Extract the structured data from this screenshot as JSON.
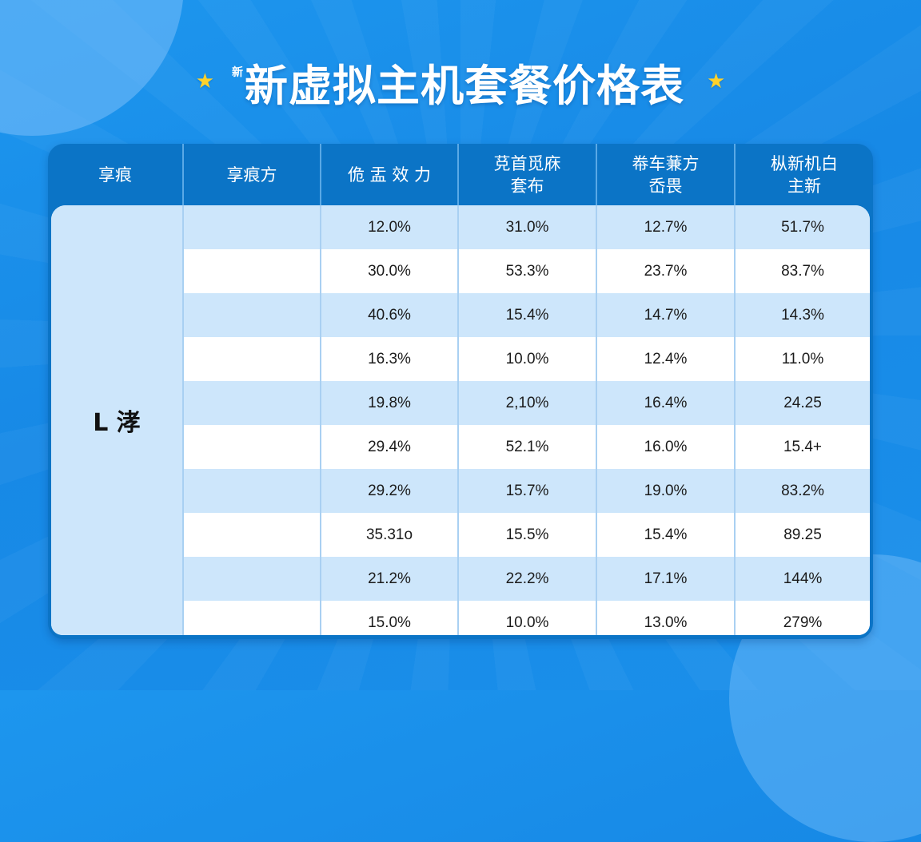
{
  "header": {
    "title_prefix": "新",
    "title": "新虚拟主机套餐价格表",
    "star_left": "★",
    "star_right": "★",
    "accent_color": "#ffd22b"
  },
  "table": {
    "columns": [
      {
        "line1": "享痕",
        "line2": ""
      },
      {
        "line1": "享痕方",
        "line2": ""
      },
      {
        "line1": "佹 盂 效 力",
        "line2": ""
      },
      {
        "line1": "莌首觅庥",
        "line2": "套布"
      },
      {
        "line1": "帣车蒹方",
        "line2": "岙畏"
      },
      {
        "line1": "枞新机白",
        "line2": "主新"
      }
    ],
    "side_label": "L 涍",
    "rows": [
      {
        "c0": "",
        "c1": "12.0%",
        "c2": "31.0%",
        "c3": "12.7%",
        "c4": "51.7%"
      },
      {
        "c0": "",
        "c1": "30.0%",
        "c2": "53.3%",
        "c3": "23.7%",
        "c4": "83.7%"
      },
      {
        "c0": "",
        "c1": "40.6%",
        "c2": "15.4%",
        "c3": "14.7%",
        "c4": "14.3%"
      },
      {
        "c0": "",
        "c1": "16.3%",
        "c2": "10.0%",
        "c3": "12.4%",
        "c4": "11.0%"
      },
      {
        "c0": "",
        "c1": "19.8%",
        "c2": "2,10%",
        "c3": "16.4%",
        "c4": "24.25"
      },
      {
        "c0": "",
        "c1": "29.4%",
        "c2": "52.1%",
        "c3": "16.0%",
        "c4": "15.4+"
      },
      {
        "c0": "",
        "c1": "29.2%",
        "c2": "15.7%",
        "c3": "19.0%",
        "c4": "83.2%"
      },
      {
        "c0": "",
        "c1": "35.31o",
        "c2": "15.5%",
        "c3": "15.4%",
        "c4": "89.25"
      },
      {
        "c0": "",
        "c1": "21.2%",
        "c2": "22.2%",
        "c3": "17.1%",
        "c4": "144%"
      },
      {
        "c0": "",
        "c1": "15.0%",
        "c2": "10.0%",
        "c3": "13.0%",
        "c4": "279%"
      }
    ],
    "colors": {
      "header_bg": "#0b74c6",
      "row_shade": "#cde6fb",
      "row_plain": "#ffffff",
      "grid_line": "#a9d0f2"
    }
  }
}
